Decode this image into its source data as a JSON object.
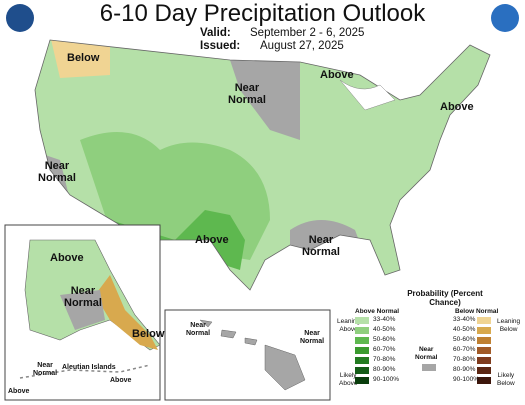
{
  "header": {
    "title": "6-10 Day Precipitation Outlook",
    "valid_label": "Valid:",
    "valid": "September 2 - 6, 2025",
    "issued_label": "Issued:",
    "issued": "August 27, 2025"
  },
  "conus_labels": [
    "Below",
    "Near Normal",
    "Above",
    "Above",
    "Near Normal",
    "Above",
    "Near Normal"
  ],
  "alaska_labels": [
    "Above",
    "Near Normal",
    "Below",
    "Near Normal",
    "Aleutian Islands",
    "Above",
    "Above"
  ],
  "hawaii_labels": [
    "Near Normal",
    "Near Normal"
  ],
  "legend": {
    "title": "Probability (Percent Chance)",
    "above": {
      "title": "Above Normal",
      "leaning": "Leaning Above",
      "likely": "Likely Above",
      "items": [
        {
          "label": "33-40%",
          "color": "#b5e0a8"
        },
        {
          "label": "40-50%",
          "color": "#8fcf7e"
        },
        {
          "label": "50-60%",
          "color": "#5eb84f"
        },
        {
          "label": "60-70%",
          "color": "#3a9a2e"
        },
        {
          "label": "70-80%",
          "color": "#237b21"
        },
        {
          "label": "80-90%",
          "color": "#145c17"
        },
        {
          "label": "90-100%",
          "color": "#0a3d0c"
        }
      ]
    },
    "near": {
      "title": "Near Normal",
      "color": "#a6a6a6"
    },
    "below": {
      "title": "Below Normal",
      "leaning": "Leaning Below",
      "likely": "Likely Below",
      "items": [
        {
          "label": "33-40%",
          "color": "#f0d493"
        },
        {
          "label": "40-50%",
          "color": "#d8a94e"
        },
        {
          "label": "50-60%",
          "color": "#bf8032"
        },
        {
          "label": "60-70%",
          "color": "#a15a27"
        },
        {
          "label": "70-80%",
          "color": "#7f3b1d"
        },
        {
          "label": "80-90%",
          "color": "#5c2612"
        },
        {
          "label": "90-100%",
          "color": "#3d160b"
        }
      ]
    }
  }
}
